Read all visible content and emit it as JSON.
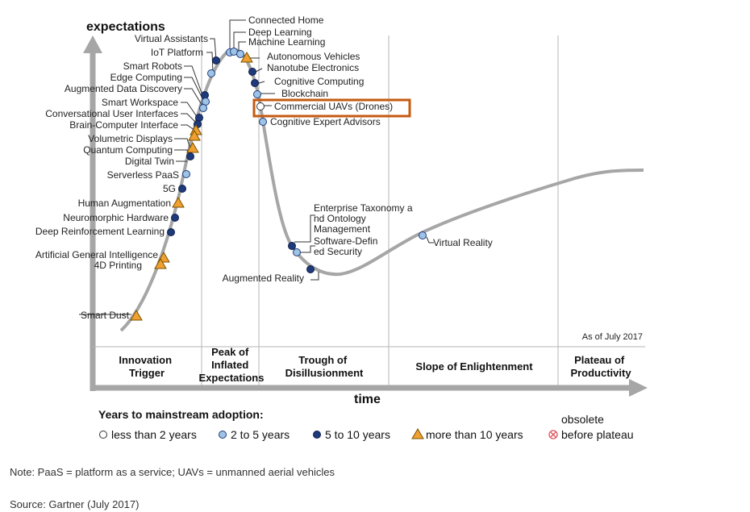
{
  "axis": {
    "y_label": "expectations",
    "x_label": "time"
  },
  "as_of": "As of July 2017",
  "phases": [
    {
      "lines": [
        "Innovation",
        "Trigger"
      ]
    },
    {
      "lines": [
        "Peak of",
        "Inflated",
        "Expectations"
      ]
    },
    {
      "lines": [
        "Trough of",
        "Disillusionment"
      ]
    },
    {
      "lines": [
        "Slope of Enlightenment"
      ]
    },
    {
      "lines": [
        "Plateau of",
        "Productivity"
      ]
    }
  ],
  "legend": {
    "title": "Years to mainstream adoption:",
    "items": [
      {
        "key": "lt2",
        "label": "less than 2 years"
      },
      {
        "key": "2to5",
        "label": "2 to 5 years"
      },
      {
        "key": "5to10",
        "label": "5 to 10 years"
      },
      {
        "key": "gt10",
        "label": "more than 10 years"
      },
      {
        "key": "obsolete",
        "lines": [
          "obsolete",
          "before plateau"
        ]
      }
    ]
  },
  "colors": {
    "curve": "#a6a6a6",
    "lt2": "#ffffff",
    "2to5": "#9dc3e6",
    "5to10": "#1f3a7a",
    "gt10": "#f0a030",
    "obsolete": "#e0505a",
    "highlight": "#c55a11"
  },
  "highlight_label": "Commercial UAVs (Drones)",
  "technologies": [
    {
      "name": "Connected Home",
      "horizon": "2to5"
    },
    {
      "name": "Deep Learning",
      "horizon": "2to5"
    },
    {
      "name": "Machine Learning",
      "horizon": "2to5"
    },
    {
      "name": "Autonomous Vehicles",
      "horizon": "gt10"
    },
    {
      "name": "Nanotube Electronics",
      "horizon": "5to10"
    },
    {
      "name": "Cognitive Computing",
      "horizon": "5to10"
    },
    {
      "name": "Blockchain",
      "horizon": "2to5"
    },
    {
      "name": "Commercial UAVs (Drones)",
      "horizon": "lt2"
    },
    {
      "name": "Cognitive Expert Advisors",
      "horizon": "2to5"
    },
    {
      "name": "Virtual Assistants",
      "horizon": "5to10"
    },
    {
      "name": "IoT Platform",
      "horizon": "2to5"
    },
    {
      "name": "Smart Robots",
      "horizon": "5to10"
    },
    {
      "name": "Edge Computing",
      "horizon": "2to5"
    },
    {
      "name": "Augmented Data Discovery",
      "horizon": "2to5"
    },
    {
      "name": "Smart Workspace",
      "horizon": "5to10"
    },
    {
      "name": "Conversational User Interfaces",
      "horizon": "5to10"
    },
    {
      "name": "Brain-Computer Interface",
      "horizon": "gt10"
    },
    {
      "name": "Volumetric Displays",
      "horizon": "gt10"
    },
    {
      "name": "Quantum Computing",
      "horizon": "gt10"
    },
    {
      "name": "Digital Twin",
      "horizon": "5to10"
    },
    {
      "name": "Serverless PaaS",
      "horizon": "2to5"
    },
    {
      "name": "5G",
      "horizon": "5to10"
    },
    {
      "name": "Human Augmentation",
      "horizon": "gt10"
    },
    {
      "name": "Neuromorphic Hardware",
      "horizon": "5to10"
    },
    {
      "name": "Deep Reinforcement Learning",
      "horizon": "5to10"
    },
    {
      "name": "Artificial General Intelligence",
      "horizon": "gt10"
    },
    {
      "name": "4D Printing",
      "horizon": "gt10"
    },
    {
      "name": "Smart Dust",
      "horizon": "gt10"
    },
    {
      "name": "Enterprise Taxonomy and Ontology Management",
      "horizon": "5to10"
    },
    {
      "name": "Software-Defined Security",
      "horizon": "2to5"
    },
    {
      "name": "Augmented Reality",
      "horizon": "5to10"
    },
    {
      "name": "Virtual Reality",
      "horizon": "2to5"
    }
  ],
  "note": "Note: PaaS = platform as a service; UAVs = unmanned aerial vehicles",
  "source": "Source: Gartner (July 2017)"
}
